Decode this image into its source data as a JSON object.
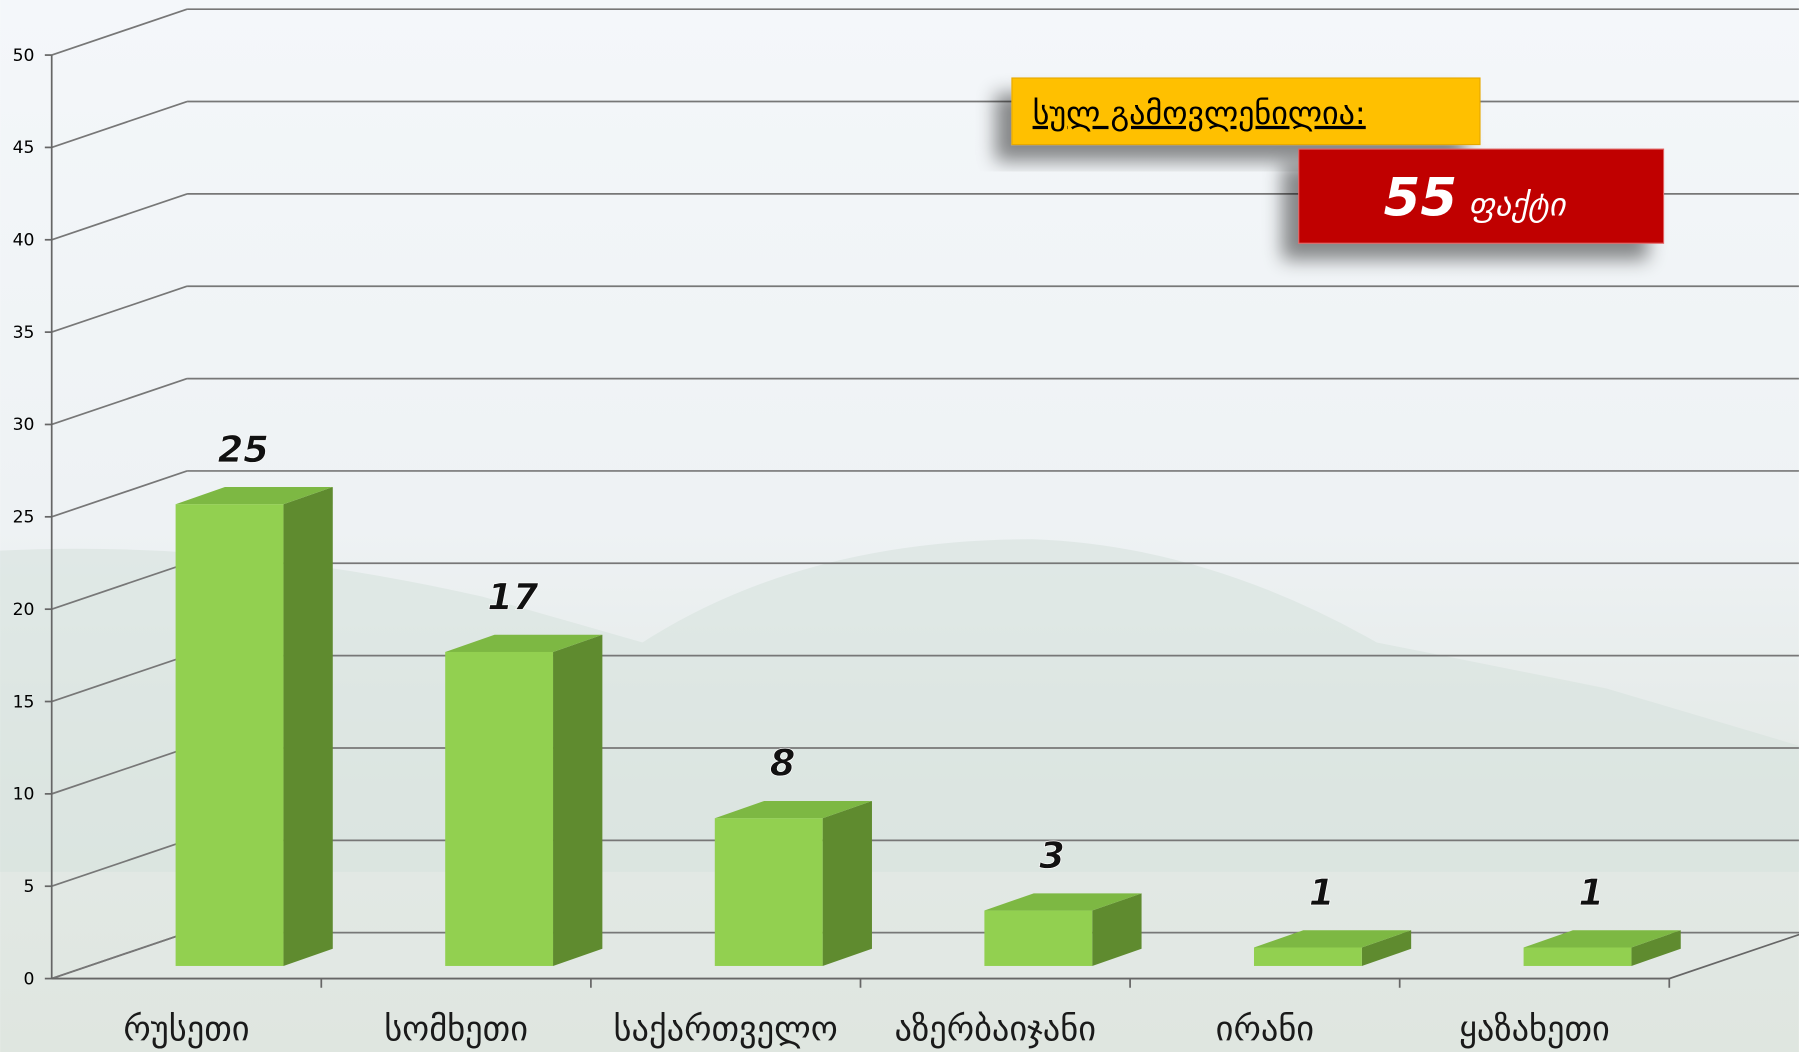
{
  "chart_data": {
    "type": "bar3d",
    "categories": [
      "რუსეთი",
      "სომხეთი",
      "საქართველო",
      "აზერბაიჯანი",
      "ირანი",
      "ყაზახეთი"
    ],
    "values": [
      25,
      17,
      8,
      3,
      1,
      1
    ],
    "color": "#92d050",
    "side_color": "#5f8b2f",
    "top_color": "#7db843",
    "ylim": [
      0,
      50
    ],
    "yticks": [
      0,
      5,
      10,
      15,
      20,
      25,
      30,
      35,
      40,
      45,
      50
    ],
    "grid": true,
    "annotation": {
      "label": "სულ გამოვლენილია:",
      "total": 55,
      "unit": "ფაქტი"
    }
  }
}
